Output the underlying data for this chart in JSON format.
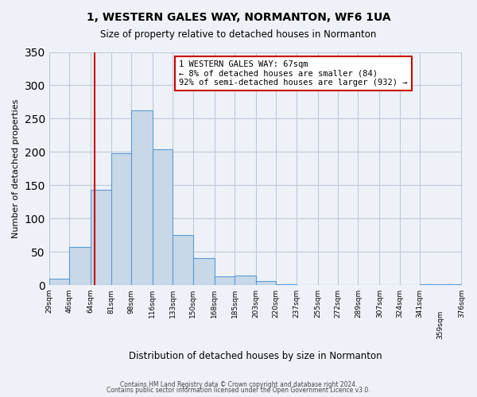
{
  "title": "1, WESTERN GALES WAY, NORMANTON, WF6 1UA",
  "subtitle": "Size of property relative to detached houses in Normanton",
  "xlabel": "Distribution of detached houses by size in Normanton",
  "ylabel": "Number of detached properties",
  "bar_heights": [
    10,
    57,
    143,
    198,
    262,
    204,
    75,
    41,
    13,
    14,
    6,
    1,
    0,
    0,
    0,
    0,
    0,
    0,
    1
  ],
  "bin_edges": [
    29,
    46,
    64,
    81,
    98,
    116,
    133,
    150,
    168,
    185,
    203,
    220,
    237,
    255,
    272,
    289,
    307,
    324,
    341,
    376
  ],
  "tick_labels": [
    "29sqm",
    "46sqm",
    "64sqm",
    "81sqm",
    "98sqm",
    "116sqm",
    "133sqm",
    "150sqm",
    "168sqm",
    "185sqm",
    "203sqm",
    "220sqm",
    "237sqm",
    "255sqm",
    "272sqm",
    "289sqm",
    "307sqm",
    "324sqm",
    "341sqm",
    "376sqm"
  ],
  "bar_color": "#c8d8e8",
  "bar_edge_color": "#5b9bd5",
  "vline_x": 67,
  "vline_color": "#cc0000",
  "annotation_box_text": "1 WESTERN GALES WAY: 67sqm\n← 8% of detached houses are smaller (84)\n92% of semi-detached houses are larger (932) →",
  "annotation_box_color": "#cc0000",
  "ylim": [
    0,
    350
  ],
  "yticks": [
    0,
    50,
    100,
    150,
    200,
    250,
    300,
    350
  ],
  "grid_color": "#c0c8d8",
  "footer_line1": "Contains HM Land Registry data © Crown copyright and database right 2024.",
  "footer_line2": "Contains public sector information licensed under the Open Government Licence v3.0.",
  "bg_color": "#eef2f8",
  "plot_bg_color": "#eef2f8"
}
